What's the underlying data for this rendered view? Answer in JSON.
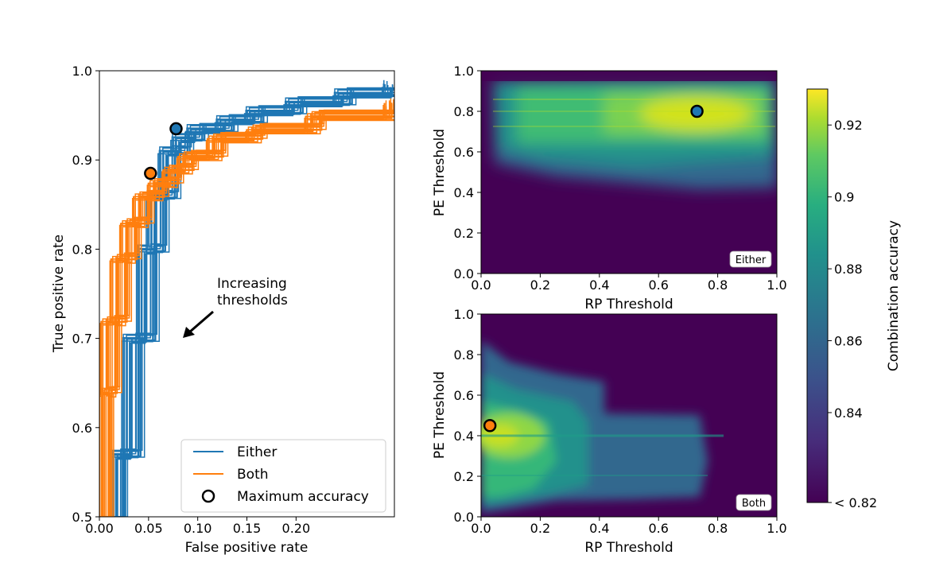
{
  "colors": {
    "either": "#1f77b4",
    "both": "#ff7f0e"
  },
  "chart_data": [
    {
      "type": "line",
      "name": "roc",
      "xlabel": "False positive rate",
      "ylabel": "True positive rate",
      "xlim": [
        0.0,
        0.3
      ],
      "ylim": [
        0.5,
        1.0
      ],
      "xticks": [
        "0.00",
        "0.05",
        "0.10",
        "0.15",
        "0.20"
      ],
      "xtick_values": [
        0.0,
        0.05,
        0.1,
        0.15,
        0.2
      ],
      "yticks": [
        "0.5",
        "0.6",
        "0.7",
        "0.8",
        "0.9",
        "1.0"
      ],
      "ytick_values": [
        0.5,
        0.6,
        0.7,
        0.8,
        0.9,
        1.0
      ],
      "annotation": {
        "lines": [
          "Increasing",
          "thresholds"
        ]
      },
      "legend": {
        "placement": "lower-right",
        "entries": [
          {
            "label": "Either",
            "kind": "line",
            "color": "#1f77b4"
          },
          {
            "label": "Both",
            "kind": "line",
            "color": "#ff7f0e"
          },
          {
            "label": "Maximum accuracy",
            "kind": "marker",
            "color": "#000000"
          }
        ]
      },
      "max_points": [
        {
          "series": "Either",
          "x": 0.078,
          "y": 0.935
        },
        {
          "series": "Both",
          "x": 0.052,
          "y": 0.885
        }
      ],
      "series": [
        {
          "name": "Either",
          "count": 24,
          "base": [
            [
              0.016,
              0.5
            ],
            [
              0.02,
              0.57
            ],
            [
              0.035,
              0.7
            ],
            [
              0.05,
              0.8
            ],
            [
              0.06,
              0.86
            ],
            [
              0.072,
              0.91
            ],
            [
              0.085,
              0.925
            ],
            [
              0.1,
              0.935
            ],
            [
              0.13,
              0.945
            ],
            [
              0.16,
              0.955
            ],
            [
              0.2,
              0.965
            ],
            [
              0.25,
              0.975
            ],
            [
              0.3,
              0.985
            ]
          ]
        },
        {
          "name": "Both",
          "count": 24,
          "base": [
            [
              0.002,
              0.5
            ],
            [
              0.006,
              0.64
            ],
            [
              0.012,
              0.72
            ],
            [
              0.022,
              0.79
            ],
            [
              0.032,
              0.83
            ],
            [
              0.045,
              0.86
            ],
            [
              0.06,
              0.875
            ],
            [
              0.075,
              0.89
            ],
            [
              0.09,
              0.905
            ],
            [
              0.12,
              0.925
            ],
            [
              0.16,
              0.935
            ],
            [
              0.22,
              0.95
            ],
            [
              0.3,
              0.965
            ]
          ]
        }
      ]
    },
    {
      "type": "heatmap",
      "name": "heatmap-either",
      "xlabel": "RP Threshold",
      "ylabel": "PE Threshold",
      "xlim": [
        0.0,
        1.0
      ],
      "ylim": [
        0.0,
        1.0
      ],
      "ticks": [
        "0.0",
        "0.2",
        "0.4",
        "0.6",
        "0.8",
        "1.0"
      ],
      "tick_values": [
        0.0,
        0.2,
        0.4,
        0.6,
        0.8,
        1.0
      ],
      "tag": "Either",
      "max_point": {
        "rp": 0.73,
        "pe": 0.8,
        "accuracy": 0.93
      }
    },
    {
      "type": "heatmap",
      "name": "heatmap-both",
      "xlabel": "RP Threshold",
      "ylabel": "PE Threshold",
      "xlim": [
        0.0,
        1.0
      ],
      "ylim": [
        0.0,
        1.0
      ],
      "ticks": [
        "0.0",
        "0.2",
        "0.4",
        "0.6",
        "0.8",
        "1.0"
      ],
      "tick_values": [
        0.0,
        0.2,
        0.4,
        0.6,
        0.8,
        1.0
      ],
      "tag": "Both",
      "max_point": {
        "rp": 0.03,
        "pe": 0.45,
        "accuracy": 0.915
      }
    },
    {
      "type": "colorbar",
      "name": "colorbar",
      "label": "Combination accuracy",
      "range": [
        0.815,
        0.93
      ],
      "ticks": [
        {
          "value": 0.92,
          "label": "0.92"
        },
        {
          "value": 0.9,
          "label": "0.9"
        },
        {
          "value": 0.88,
          "label": "0.88"
        },
        {
          "value": 0.86,
          "label": "0.86"
        },
        {
          "value": 0.84,
          "label": "0.84"
        },
        {
          "value": 0.815,
          "label": "< 0.82"
        }
      ]
    }
  ]
}
